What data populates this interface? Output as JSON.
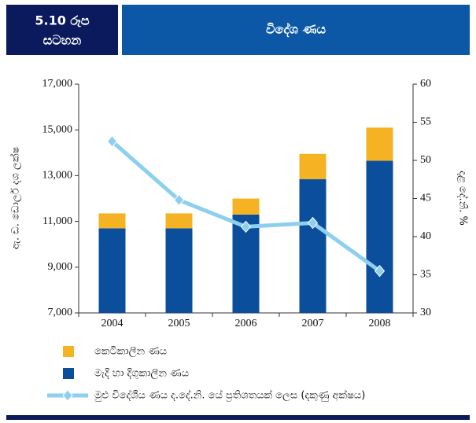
{
  "chart_data": {
    "type": "bar_line",
    "figure_label": [
      "5.10 රූප",
      "සටහන"
    ],
    "title": "විදේශ ණය",
    "y_label": "ඇ. ඩ. ඩොලර් දශ ලක්ෂ",
    "y2_label": "දළ දේ.නි. %",
    "categories": [
      "2004",
      "2005",
      "2006",
      "2007",
      "2008"
    ],
    "series": [
      {
        "name": "මැදි හා දිගුකාලීන ණය",
        "color": "#0b4f9c",
        "type": "bar",
        "values": [
          10700,
          10700,
          11300,
          12850,
          13650
        ]
      },
      {
        "name": "කෙටිකාලීන ණය",
        "color": "#f5b324",
        "type": "bar",
        "values": [
          650,
          650,
          700,
          1100,
          1450
        ]
      },
      {
        "name": "මුළු විදේශීය ණය ද.දේ.නි. යේ ප්‍රතිශතයක් ලෙස (දකුණු අක්ෂය)",
        "color": "#8dcfee",
        "type": "line",
        "axis": "y2",
        "values": [
          52.5,
          44.8,
          41.3,
          41.8,
          35.5
        ]
      }
    ],
    "ylim": [
      7000,
      17000
    ],
    "yticks": [
      {
        "value": 7000,
        "label": "7,000"
      },
      {
        "value": 9000,
        "label": "9,000"
      },
      {
        "value": 11000,
        "label": "11,000"
      },
      {
        "value": 13000,
        "label": "13,000"
      },
      {
        "value": 15000,
        "label": "15,000"
      },
      {
        "value": 17000,
        "label": "17,000"
      }
    ],
    "y2lim": [
      30,
      60
    ],
    "y2ticks": [
      30,
      35,
      40,
      45,
      50,
      55,
      60
    ],
    "grid": false
  }
}
